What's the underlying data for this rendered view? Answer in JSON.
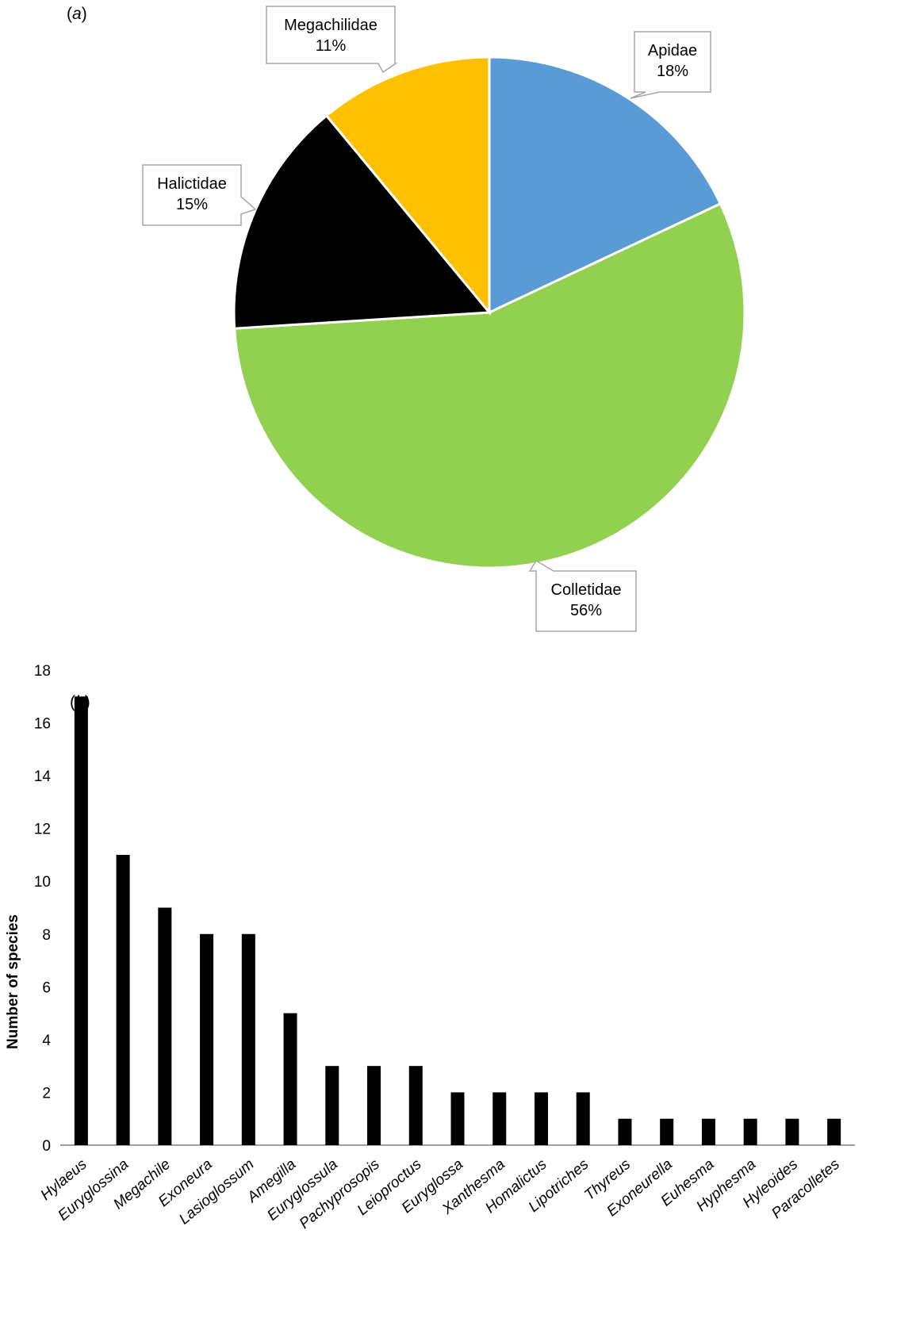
{
  "chart_data": [
    {
      "type": "pie",
      "panel_label": "(a)",
      "slices": [
        {
          "name": "Apidae",
          "value": 18,
          "color": "#5B9BD5"
        },
        {
          "name": "Colletidae",
          "value": 56,
          "color": "#92D050"
        },
        {
          "name": "Halictidae",
          "value": 15,
          "color": "#000000"
        },
        {
          "name": "Megachilidae",
          "value": 11,
          "color": "#FFC000"
        }
      ],
      "data_labels": [
        {
          "name": "Apidae",
          "pct": "18%"
        },
        {
          "name": "Colletidae",
          "pct": "56%"
        },
        {
          "name": "Halictidae",
          "pct": "15%"
        },
        {
          "name": "Megachilidae",
          "pct": "11%"
        }
      ],
      "start_angle": "12 o'clock, clockwise",
      "legend": "none"
    },
    {
      "type": "bar",
      "panel_label": "(b)",
      "categories": [
        "Hylaeus",
        "Euryglossina",
        "Megachile",
        "Exoneura",
        "Lasioglossum",
        "Amegilla",
        "Euryglossula",
        "Pachyprosopis",
        "Leioproctus",
        "Euryglossa",
        "Xanthesma",
        "Homalictus",
        "Lipotriches",
        "Thyreus",
        "Exoneurella",
        "Euhesma",
        "Hyphesma",
        "Hyleoides",
        "Paracolletes"
      ],
      "values": [
        17,
        11,
        9,
        8,
        8,
        5,
        3,
        3,
        3,
        2,
        2,
        2,
        2,
        1,
        1,
        1,
        1,
        1,
        1
      ],
      "ylabel": "Number of species",
      "xlabel": "",
      "ylim": [
        0,
        18
      ],
      "yticks": [
        0,
        2,
        4,
        6,
        8,
        10,
        12,
        14,
        16,
        18
      ],
      "bar_color": "#000000",
      "grid": false,
      "legend": "none"
    }
  ]
}
